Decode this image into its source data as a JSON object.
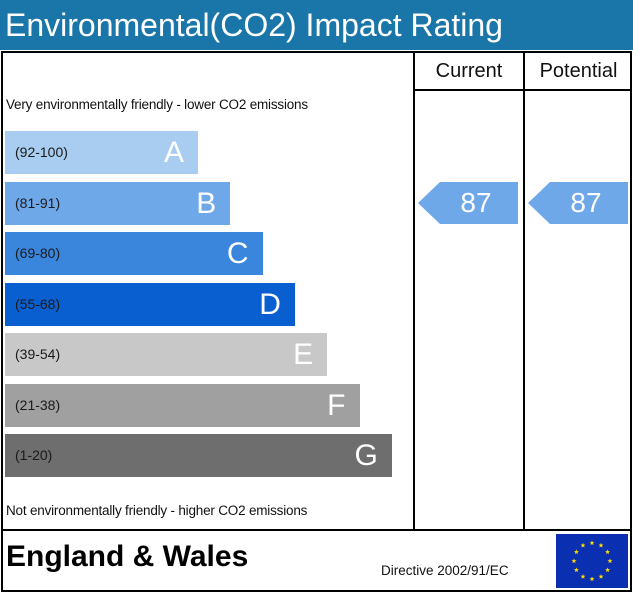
{
  "header": {
    "title": "Environmental(CO2) Impact Rating"
  },
  "columns": {
    "current": "Current",
    "potential": "Potential"
  },
  "notes": {
    "top": "Very environmentally friendly - lower CO2 emissions",
    "bottom": "Not environmentally friendly - higher CO2 emissions"
  },
  "footer": {
    "region": "England & Wales",
    "directive": "Directive 2002/91/EC",
    "flag_icon": "eu-flag-icon"
  },
  "chart_data": {
    "type": "bar",
    "categories": [
      "A",
      "B",
      "C",
      "D",
      "E",
      "F",
      "G"
    ],
    "ranges": [
      "(92-100)",
      "(81-91)",
      "(69-80)",
      "(55-68)",
      "(39-54)",
      "(21-38)",
      "(1-20)"
    ],
    "colors": [
      "#a8cdf0",
      "#6fa8e8",
      "#3a86dc",
      "#0a5fd0",
      "#c8c8c8",
      "#a0a0a0",
      "#6e6e6e"
    ],
    "current": {
      "value": 87,
      "band": "B"
    },
    "potential": {
      "value": 87,
      "band": "B"
    },
    "arrow_color": "#6fa8e8"
  }
}
